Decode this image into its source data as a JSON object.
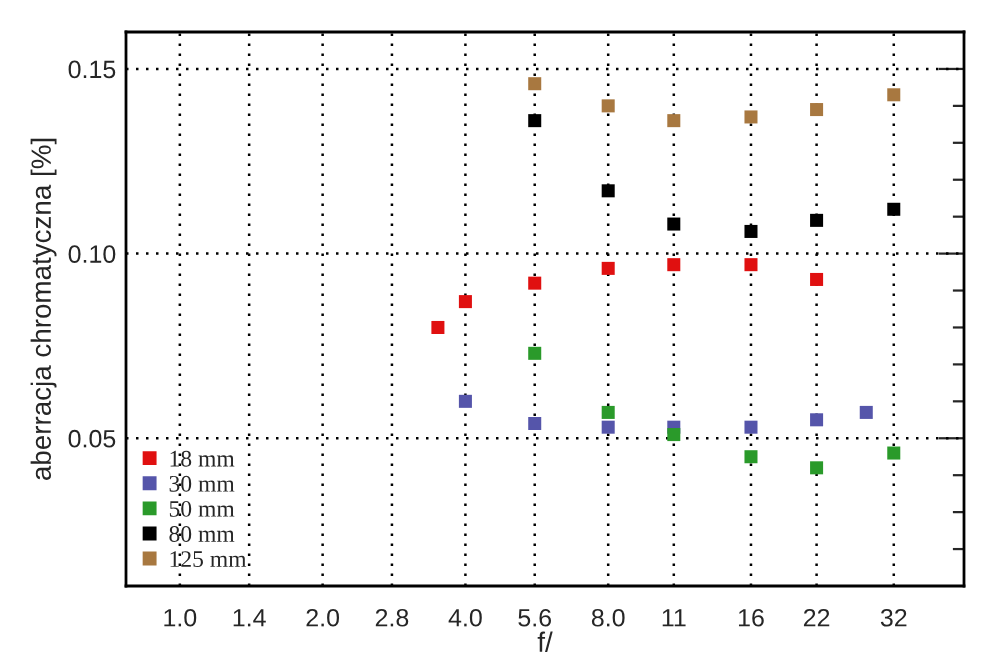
{
  "chart_data": {
    "type": "scatter",
    "xlabel": "f/",
    "ylabel": "aberracja chromatyczna [%]",
    "log": "x",
    "xlim": [
      0.77,
      45
    ],
    "ylim": [
      0.01,
      0.16
    ],
    "xticks": [
      {
        "value": 1,
        "label": "1.0"
      },
      1.4,
      {
        "value": 2,
        "label": "2.0"
      },
      2.8,
      {
        "value": 4,
        "label": "4.0"
      },
      5.6,
      {
        "value": 8,
        "label": "8.0"
      },
      11,
      16,
      22,
      32
    ],
    "yticks": [
      {
        "value": 0.02,
        "label": null
      },
      {
        "value": 0.03,
        "label": null
      },
      {
        "value": 0.04,
        "label": null
      },
      {
        "value": 0.05,
        "label": "0.05"
      },
      {
        "value": 0.06,
        "label": null
      },
      {
        "value": 0.07,
        "label": null
      },
      {
        "value": 0.08,
        "label": null
      },
      {
        "value": 0.09,
        "label": null
      },
      {
        "value": 0.1,
        "label": "0.10"
      },
      {
        "value": 0.11,
        "label": null
      },
      {
        "value": 0.12,
        "label": null
      },
      {
        "value": 0.13,
        "label": null
      },
      {
        "value": 0.14,
        "label": null
      },
      {
        "value": 0.15,
        "label": "0.15"
      }
    ],
    "grid": true,
    "legend": "bottom left",
    "marker": "square",
    "series": [
      {
        "name": "18 mm",
        "color": "#e01010",
        "x": [
          3.5,
          4,
          5.6,
          8,
          11,
          16,
          22
        ],
        "values": [
          0.08,
          0.087,
          0.092,
          0.096,
          0.097,
          0.097,
          0.093
        ]
      },
      {
        "name": "30 mm",
        "color": "#5555aa",
        "x": [
          4,
          5.6,
          8,
          11,
          16,
          22,
          28
        ],
        "values": [
          0.06,
          0.054,
          0.053,
          0.053,
          0.053,
          0.055,
          0.057
        ]
      },
      {
        "name": "50 mm",
        "color": "#2a9a2a",
        "x": [
          5.6,
          8,
          11,
          16,
          22,
          32
        ],
        "values": [
          0.073,
          0.057,
          0.051,
          0.045,
          0.042,
          0.046
        ]
      },
      {
        "name": "80 mm",
        "color": "#000000",
        "x": [
          5.6,
          8,
          11,
          16,
          22,
          32
        ],
        "values": [
          0.136,
          0.117,
          0.108,
          0.106,
          0.109,
          0.112
        ]
      },
      {
        "name": "125 mm",
        "color": "#a87840",
        "x": [
          5.6,
          8,
          11,
          16,
          22,
          32
        ],
        "values": [
          0.146,
          0.14,
          0.136,
          0.137,
          0.139,
          0.143
        ]
      }
    ]
  }
}
